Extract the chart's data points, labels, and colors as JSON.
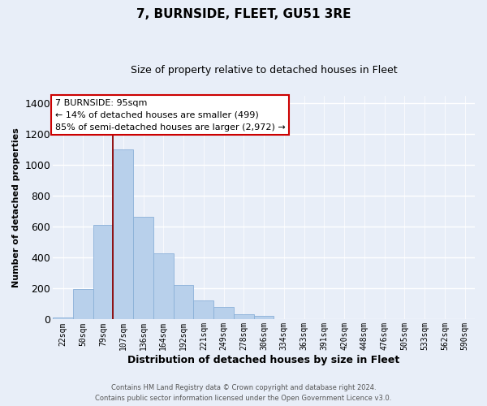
{
  "title": "7, BURNSIDE, FLEET, GU51 3RE",
  "subtitle": "Size of property relative to detached houses in Fleet",
  "xlabel": "Distribution of detached houses by size in Fleet",
  "ylabel": "Number of detached properties",
  "bar_labels": [
    "22sqm",
    "50sqm",
    "79sqm",
    "107sqm",
    "136sqm",
    "164sqm",
    "192sqm",
    "221sqm",
    "249sqm",
    "278sqm",
    "306sqm",
    "334sqm",
    "363sqm",
    "391sqm",
    "420sqm",
    "448sqm",
    "476sqm",
    "505sqm",
    "533sqm",
    "562sqm",
    "590sqm"
  ],
  "bar_values": [
    15,
    195,
    615,
    1100,
    665,
    430,
    225,
    125,
    80,
    35,
    25,
    0,
    0,
    0,
    0,
    0,
    0,
    0,
    0,
    0,
    0
  ],
  "bar_color": "#b8d0eb",
  "bar_edge_color": "#8ab0d8",
  "vline_x_index": 3,
  "vline_color": "#8b0000",
  "ylim": [
    0,
    1450
  ],
  "yticks": [
    0,
    200,
    400,
    600,
    800,
    1000,
    1200,
    1400
  ],
  "annotation_title": "7 BURNSIDE: 95sqm",
  "annotation_line1": "← 14% of detached houses are smaller (499)",
  "annotation_line2": "85% of semi-detached houses are larger (2,972) →",
  "annotation_box_facecolor": "#ffffff",
  "annotation_box_edgecolor": "#cc0000",
  "footer_line1": "Contains HM Land Registry data © Crown copyright and database right 2024.",
  "footer_line2": "Contains public sector information licensed under the Open Government Licence v3.0.",
  "bg_color": "#e8eef8",
  "plot_bg_color": "#e8eef8",
  "grid_color": "#ffffff",
  "title_fontsize": 11,
  "subtitle_fontsize": 9,
  "ylabel_fontsize": 8,
  "xlabel_fontsize": 9,
  "tick_fontsize": 7,
  "footer_fontsize": 6,
  "ann_fontsize": 8
}
